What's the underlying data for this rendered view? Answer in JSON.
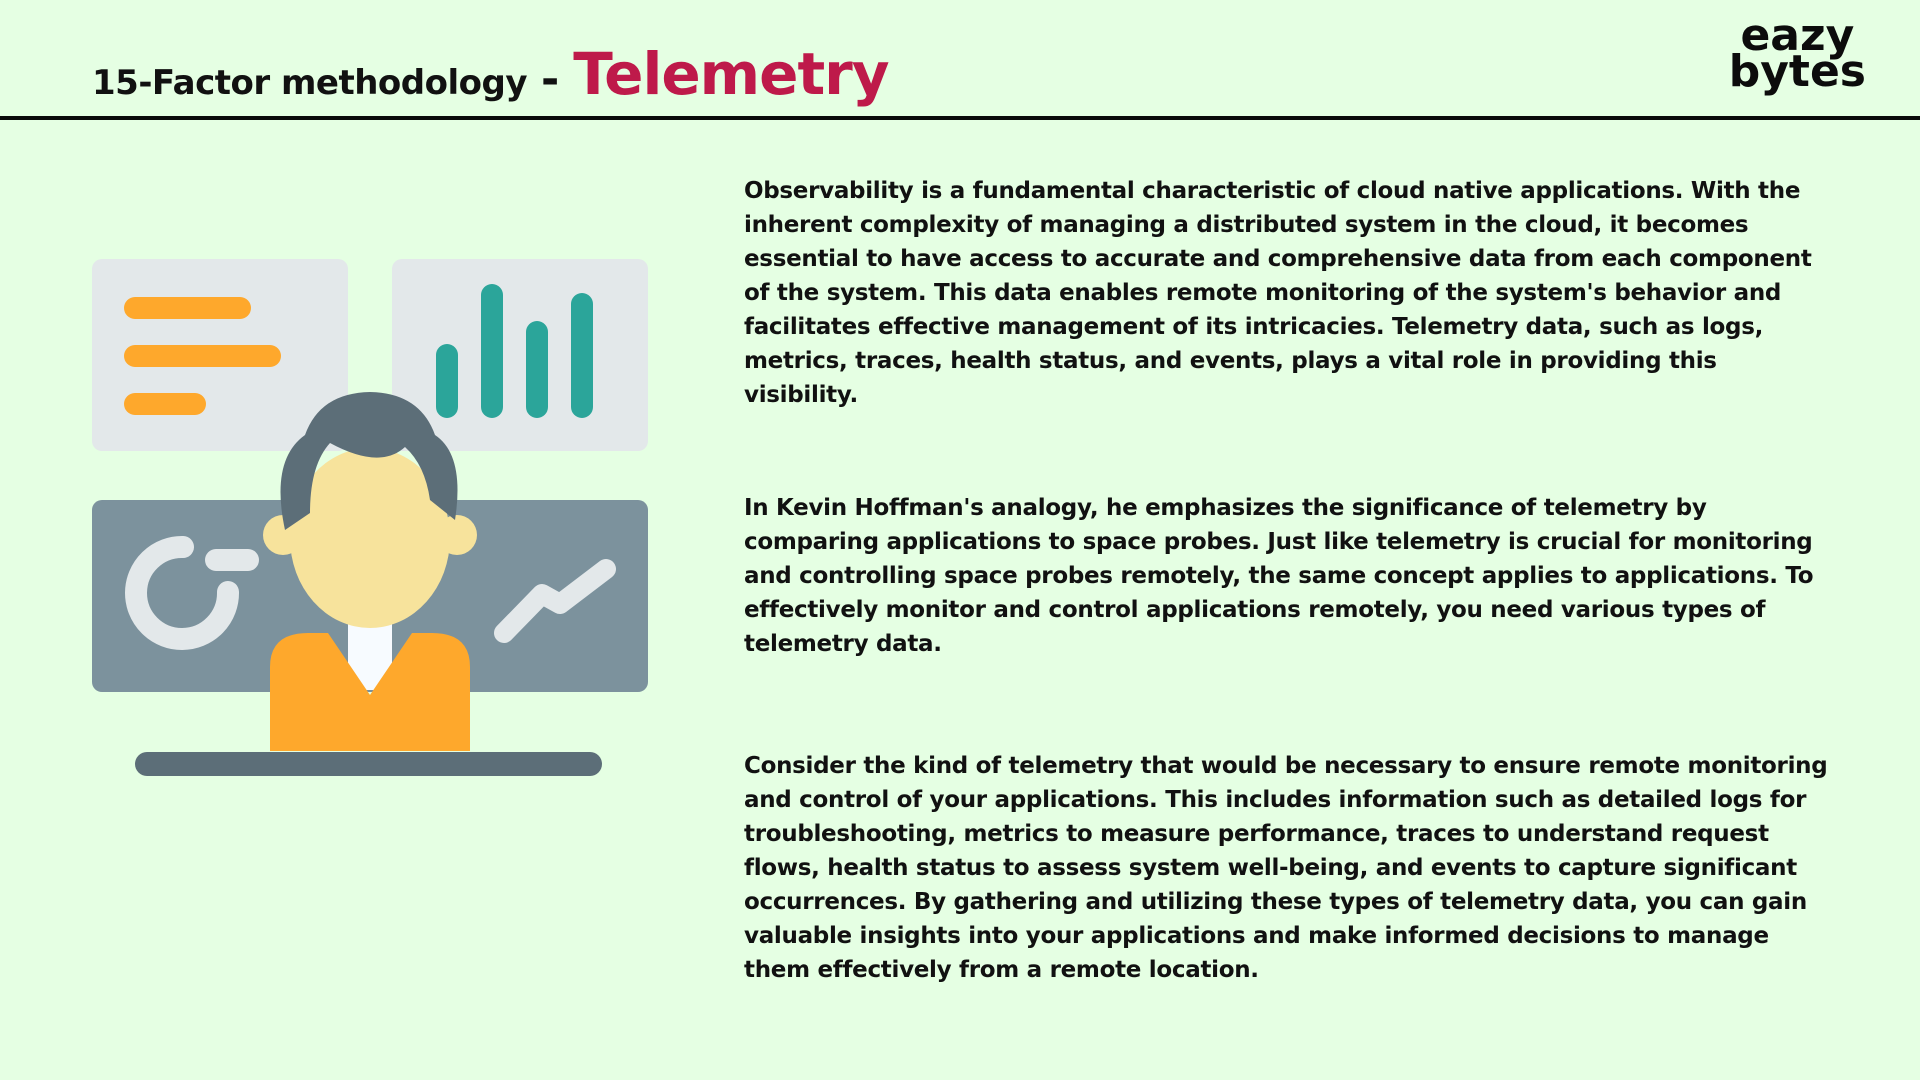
{
  "header": {
    "title_main": "15-Factor methodology",
    "title_dash": "-",
    "title_accent": "Telemetry",
    "accent_color": "#be1a4a",
    "logo_line1": "eazy",
    "logo_line2": "bytes"
  },
  "illustration": {
    "icon": "telemetry-dashboard-person-icon",
    "colors": {
      "panel_light": "#e3e8ea",
      "panel_dark": "#7c929d",
      "bars_orange": "#fea82c",
      "bars_teal": "#2ba59a",
      "hair": "#5c6e78",
      "skin": "#f7e39c",
      "shirt": "#fea82c",
      "desk": "#5c6e78"
    }
  },
  "content": {
    "paragraphs": [
      "Observability is a fundamental characteristic of cloud native applications. With the inherent complexity of managing a distributed system in the cloud, it becomes essential to have access to accurate and comprehensive data from each component of the system. This data enables remote monitoring of the system's behavior and facilitates effective management of its intricacies. Telemetry data, such as logs, metrics, traces, health status, and events, plays a vital role in providing this visibility.",
      "In Kevin Hoffman's analogy, he emphasizes the significance of telemetry by comparing applications to space probes. Just like telemetry is crucial for monitoring and controlling space probes remotely, the same concept applies to applications. To effectively monitor and control applications remotely, you need various types of telemetry data.",
      "Consider the kind of telemetry that would be necessary to ensure remote monitoring and control of your applications. This includes information such as detailed logs for troubleshooting, metrics to measure performance, traces to understand request flows, health status to assess system well-being, and events to capture significant occurrences. By gathering and utilizing these types of telemetry data, you can gain valuable insights into your applications and make informed decisions to manage them effectively from a remote location."
    ]
  }
}
